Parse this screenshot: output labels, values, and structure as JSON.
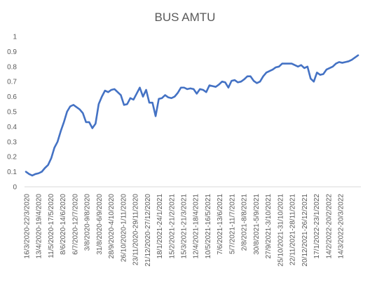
{
  "chart_data": {
    "type": "line",
    "title": "BUS AMTU",
    "xlabel": "",
    "ylabel": "",
    "ylim": [
      0,
      1
    ],
    "yticks": [
      "0",
      "0.1",
      "0.2",
      "0.3",
      "0.4",
      "0.5",
      "0.6",
      "0.7",
      "0.8",
      "0.9",
      "1"
    ],
    "grid": false,
    "legend": "none",
    "line_color": "#4472c4",
    "x_tick_labels": [
      "16/3/2020-22/3/2020",
      "13/4/2020-19/4/2020",
      "11/5/2020-17/5/2020",
      "8/6/2020-14/6/2020",
      "6/7/2020-12/7/2020",
      "3/8/2020-9/8/2020",
      "31/8/2020-6/9/2020",
      "28/9/2020-4/10/2020",
      "26/10/2020-1/11/2020",
      "23/11/2020-29/11/2020",
      "21/12/2020-27/12/2020",
      "18/1/2021-24/1/2021",
      "15/2/2021-21/2/2021",
      "15/3/2021-21/3/2021",
      "12/4/2021-18/4/2021",
      "10/5/2021-16/5/2021",
      "7/6/2021-13/6/2021",
      "5/7/2021-11/7/2021",
      "2/8/2021-8/8/2021",
      "30/8/2021-5/9/2021",
      "27/9/2021-3/10/2021",
      "25/10/2021-31/10/2021",
      "22/11/2021-28/11/2021",
      "20/12/2021-26/12/2021",
      "17/1/2022-23/1/2022",
      "14/2/2022-20/2/2022",
      "14/3/2022-20/3/2022"
    ],
    "series": [
      {
        "values": [
          0.1,
          0.085,
          0.075,
          0.085,
          0.09,
          0.1,
          0.125,
          0.145,
          0.19,
          0.26,
          0.3,
          0.37,
          0.43,
          0.5,
          0.535,
          0.545,
          0.53,
          0.515,
          0.49,
          0.43,
          0.43,
          0.39,
          0.42,
          0.55,
          0.6,
          0.64,
          0.63,
          0.645,
          0.65,
          0.63,
          0.61,
          0.545,
          0.55,
          0.59,
          0.58,
          0.62,
          0.66,
          0.6,
          0.645,
          0.56,
          0.56,
          0.47,
          0.585,
          0.59,
          0.61,
          0.595,
          0.59,
          0.6,
          0.625,
          0.66,
          0.66,
          0.65,
          0.655,
          0.65,
          0.62,
          0.65,
          0.645,
          0.63,
          0.675,
          0.67,
          0.665,
          0.68,
          0.7,
          0.695,
          0.66,
          0.705,
          0.71,
          0.695,
          0.7,
          0.715,
          0.735,
          0.735,
          0.705,
          0.69,
          0.7,
          0.735,
          0.76,
          0.77,
          0.78,
          0.795,
          0.8,
          0.82,
          0.82,
          0.82,
          0.82,
          0.81,
          0.8,
          0.81,
          0.79,
          0.8,
          0.72,
          0.7,
          0.76,
          0.745,
          0.75,
          0.78,
          0.79,
          0.8,
          0.82,
          0.83,
          0.825,
          0.83,
          0.835,
          0.845,
          0.86,
          0.875
        ]
      }
    ]
  }
}
